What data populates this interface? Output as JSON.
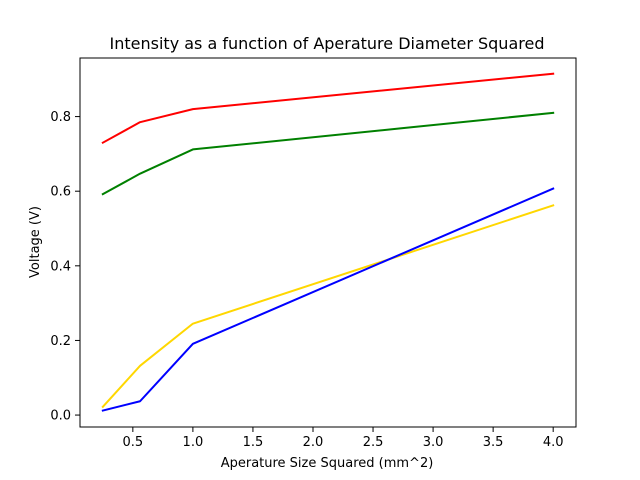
{
  "chart_data": {
    "type": "line",
    "title": "Intensity as a function of Aperature Diameter Squared",
    "xlabel": "Aperature Size Squared (mm^2)",
    "ylabel": "Voltage (V)",
    "xlim": [
      0.06,
      4.19
    ],
    "ylim": [
      -0.032,
      0.957
    ],
    "xticks": [
      0.5,
      1.0,
      1.5,
      2.0,
      2.5,
      3.0,
      3.5,
      4.0
    ],
    "xtick_labels": [
      "0.5",
      "1.0",
      "1.5",
      "2.0",
      "2.5",
      "3.0",
      "3.5",
      "4.0"
    ],
    "yticks": [
      0.0,
      0.2,
      0.4,
      0.6,
      0.8
    ],
    "ytick_labels": [
      "0.0",
      "0.2",
      "0.4",
      "0.6",
      "0.8"
    ],
    "grid": false,
    "legend": "none",
    "x": [
      0.25,
      0.56,
      1.0,
      4.0
    ],
    "series": [
      {
        "color": "#ff0000",
        "values": [
          0.73,
          0.785,
          0.82,
          0.915
        ]
      },
      {
        "color": "#008000",
        "values": [
          0.592,
          0.647,
          0.712,
          0.81
        ]
      },
      {
        "color": "#ffd700",
        "values": [
          0.022,
          0.132,
          0.245,
          0.562
        ]
      },
      {
        "color": "#0000ff",
        "values": [
          0.012,
          0.037,
          0.191,
          0.607
        ]
      }
    ]
  }
}
